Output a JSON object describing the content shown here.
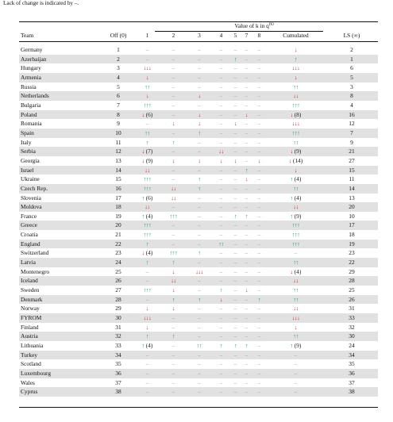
{
  "caption": "Lack of change is indicated by –.",
  "header": {
    "team": "Team",
    "value_of_k": "Value of k in q",
    "value_of_k_sup": "(k)",
    "columns": [
      "Off (0)",
      "1",
      "2",
      "3",
      "4",
      "5",
      "7",
      "8",
      "Cumulated",
      "LS (∞)"
    ]
  },
  "colors": {
    "up": "#19966a",
    "down": "#c0282d",
    "shade": "#e1e1e1"
  },
  "rows": [
    {
      "team": "Germany",
      "off": "1",
      "c": [
        "–",
        "–",
        "–",
        "–",
        "–",
        "–",
        "–"
      ],
      "cum": "↓",
      "ls": "2"
    },
    {
      "team": "Azerbaijan",
      "off": "2",
      "c": [
        "–",
        "–",
        "–",
        "–",
        "↑",
        "–",
        "–"
      ],
      "cum": "↑",
      "ls": "1"
    },
    {
      "team": "Hungary",
      "off": "3",
      "c": [
        "↓↓↓",
        "–",
        "–",
        "–",
        "–",
        "–",
        "–"
      ],
      "cum": "↓↓↓",
      "ls": "6"
    },
    {
      "team": "Armenia",
      "off": "4",
      "c": [
        "↓",
        "–",
        "–",
        "–",
        "–",
        "–",
        "–"
      ],
      "cum": "↓",
      "ls": "5"
    },
    {
      "team": "Russia",
      "off": "5",
      "c": [
        "↑↑",
        "–",
        "–",
        "–",
        "–",
        "–",
        "–"
      ],
      "cum": "↑↑",
      "ls": "3"
    },
    {
      "team": "Netherlands",
      "off": "6",
      "c": [
        "↓",
        "–",
        "↓",
        "–",
        "–",
        "–",
        "–"
      ],
      "cum": "↓↓",
      "ls": "8"
    },
    {
      "team": "Bulgaria",
      "off": "7",
      "c": [
        "↑↑↑",
        "–",
        "–",
        "–",
        "–",
        "–",
        "–"
      ],
      "cum": "↑↑↑",
      "ls": "4"
    },
    {
      "team": "Poland",
      "off": "8",
      "c": [
        "↓ (6)",
        "–",
        "↓",
        "–",
        "–",
        "↓",
        "–"
      ],
      "cum": "↓ (8)",
      "ls": "16"
    },
    {
      "team": "Romania",
      "off": "9",
      "c": [
        "–",
        "↓",
        "↓",
        "–",
        "↓",
        "–",
        "–"
      ],
      "cum": "↓↓↓",
      "ls": "12"
    },
    {
      "team": "Spain",
      "off": "10",
      "c": [
        "↑↑",
        "–",
        "↑",
        "–",
        "–",
        "–",
        "–"
      ],
      "cum": "↑↑↑",
      "ls": "7"
    },
    {
      "team": "Italy",
      "off": "11",
      "c": [
        "↑",
        "↑",
        "–",
        "–",
        "–",
        "–",
        "–"
      ],
      "cum": "↑↑",
      "ls": "9"
    },
    {
      "team": "Serbia",
      "off": "12",
      "c": [
        "↓ (7)",
        "–",
        "–",
        "↓↓",
        "–",
        "–",
        "–"
      ],
      "cum": "↓ (9)",
      "ls": "21"
    },
    {
      "team": "Georgia",
      "off": "13",
      "c": [
        "↓ (9)",
        "↓",
        "↓",
        "↓",
        "↓",
        "–",
        "↓"
      ],
      "cum": "↓ (14)",
      "ls": "27"
    },
    {
      "team": "Israel",
      "off": "14",
      "c": [
        "↓↓",
        "–",
        "–",
        "–",
        "–",
        "↑",
        "–"
      ],
      "cum": "↓",
      "ls": "15"
    },
    {
      "team": "Ukraine",
      "off": "15",
      "c": [
        "↑↑↑",
        "–",
        "↑",
        "–",
        "–",
        "↓",
        "–"
      ],
      "cum": "↑ (4)",
      "ls": "11"
    },
    {
      "team": "Czech Rep.",
      "off": "16",
      "c": [
        "↑↑↑",
        "↓↓",
        "↑",
        "–",
        "–",
        "–",
        "–"
      ],
      "cum": "↑↑",
      "ls": "14"
    },
    {
      "team": "Slovenia",
      "off": "17",
      "c": [
        "↑ (6)",
        "↓↓",
        "–",
        "–",
        "–",
        "–",
        "–"
      ],
      "cum": "↑ (4)",
      "ls": "13"
    },
    {
      "team": "Moldova",
      "off": "18",
      "c": [
        "↓↓",
        "–",
        "–",
        "–",
        "–",
        "–",
        "–"
      ],
      "cum": "↓↓",
      "ls": "20"
    },
    {
      "team": "France",
      "off": "19",
      "c": [
        "↑ (4)",
        "↑↑↑",
        "–",
        "–",
        "↑",
        "↑",
        "–"
      ],
      "cum": "↑ (9)",
      "ls": "10"
    },
    {
      "team": "Greece",
      "off": "20",
      "c": [
        "↑↑↑",
        "–",
        "–",
        "–",
        "–",
        "–",
        "–"
      ],
      "cum": "↑↑↑",
      "ls": "17"
    },
    {
      "team": "Croatia",
      "off": "21",
      "c": [
        "↑↑↑",
        "–",
        "–",
        "–",
        "–",
        "–",
        "–"
      ],
      "cum": "↑↑↑",
      "ls": "18"
    },
    {
      "team": "England",
      "off": "22",
      "c": [
        "↑",
        "–",
        "–",
        "↑↑",
        "–",
        "–",
        "–"
      ],
      "cum": "↑↑↑",
      "ls": "19"
    },
    {
      "team": "Switzerland",
      "off": "23",
      "c": [
        "↓ (4)",
        "↑↑↑",
        "↑",
        "–",
        "–",
        "–",
        "–"
      ],
      "cum": "–",
      "ls": "23"
    },
    {
      "team": "Latvia",
      "off": "24",
      "c": [
        "↑",
        "↑",
        "–",
        "–",
        "–",
        "–",
        "–"
      ],
      "cum": "↑↑",
      "ls": "22"
    },
    {
      "team": "Montenegro",
      "off": "25",
      "c": [
        "–",
        "↓",
        "↓↓↓",
        "–",
        "–",
        "–",
        "–"
      ],
      "cum": "↓ (4)",
      "ls": "29"
    },
    {
      "team": "Iceland",
      "off": "26",
      "c": [
        "–",
        "↓↓",
        "–",
        "–",
        "–",
        "–",
        "–"
      ],
      "cum": "↓↓",
      "ls": "28"
    },
    {
      "team": "Sweden",
      "off": "27",
      "c": [
        "↑↑↑",
        "↓",
        "–",
        "↑",
        "–",
        "↓",
        "–"
      ],
      "cum": "↑↑",
      "ls": "25"
    },
    {
      "team": "Denmark",
      "off": "28",
      "c": [
        "–",
        "↑",
        "↑",
        "↓",
        "–",
        "–",
        "↑"
      ],
      "cum": "↑↑",
      "ls": "26"
    },
    {
      "team": "Norway",
      "off": "29",
      "c": [
        "↓",
        "↓",
        "–",
        "–",
        "–",
        "–",
        "–"
      ],
      "cum": "↓↓",
      "ls": "31"
    },
    {
      "team": "FYROM",
      "off": "30",
      "c": [
        "↓↓↓",
        "–",
        "–",
        "–",
        "–",
        "–",
        "–"
      ],
      "cum": "↓↓↓",
      "ls": "33"
    },
    {
      "team": "Finland",
      "off": "31",
      "c": [
        "↓",
        "–",
        "–",
        "–",
        "–",
        "–",
        "–"
      ],
      "cum": "↓",
      "ls": "32"
    },
    {
      "team": "Austria",
      "off": "32",
      "c": [
        "↑",
        "↑",
        "–",
        "–",
        "–",
        "–",
        "–"
      ],
      "cum": "↑↑",
      "ls": "30"
    },
    {
      "team": "Lithuania",
      "off": "33",
      "c": [
        "↑ (4)",
        "–",
        "↑↑",
        "↑",
        "↑",
        "↑",
        "–"
      ],
      "cum": "↑ (9)",
      "ls": "24"
    },
    {
      "team": "Turkey",
      "off": "34",
      "c": [
        "–",
        "–",
        "–",
        "–",
        "–",
        "–",
        "–"
      ],
      "cum": "–",
      "ls": "34"
    },
    {
      "team": "Scotland",
      "off": "35",
      "c": [
        "–",
        "–",
        "–",
        "–",
        "–",
        "–",
        "–"
      ],
      "cum": "–",
      "ls": "35"
    },
    {
      "team": "Luxembourg",
      "off": "36",
      "c": [
        "–",
        "–",
        "–",
        "–",
        "–",
        "–",
        "–"
      ],
      "cum": "–",
      "ls": "36"
    },
    {
      "team": "Wales",
      "off": "37",
      "c": [
        "–",
        "–",
        "–",
        "–",
        "–",
        "–",
        "–"
      ],
      "cum": "–",
      "ls": "37"
    },
    {
      "team": "Cyprus",
      "off": "38",
      "c": [
        "–",
        "–",
        "–",
        "–",
        "–",
        "–",
        "–"
      ],
      "cum": "–",
      "ls": "38"
    }
  ]
}
